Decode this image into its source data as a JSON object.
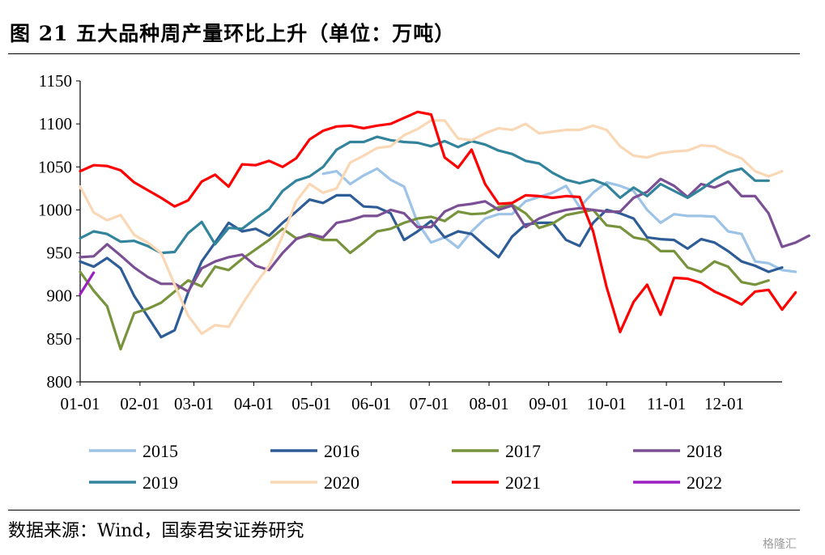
{
  "header": {
    "title": "图 21  五大品种周产量环比上升（单位：万吨）"
  },
  "footer": {
    "source": "数据来源：Wind，国泰君安证券研究",
    "watermark": "格隆汇"
  },
  "chart_data": {
    "type": "line",
    "title": "图 21  五大品种周产量环比上升（单位：万吨）",
    "xlabel": "",
    "ylabel": "",
    "ylim": [
      800,
      1150
    ],
    "yticks": [
      800,
      850,
      900,
      950,
      1000,
      1050,
      1100,
      1150
    ],
    "xlim": [
      1,
      53
    ],
    "xticks": [
      {
        "label": "01-01",
        "week": 1
      },
      {
        "label": "02-01",
        "week": 5.43
      },
      {
        "label": "03-01",
        "week": 9.43
      },
      {
        "label": "04-01",
        "week": 13.86
      },
      {
        "label": "05-01",
        "week": 18.14
      },
      {
        "label": "06-01",
        "week": 22.57
      },
      {
        "label": "07-01",
        "week": 26.86
      },
      {
        "label": "08-01",
        "week": 31.29
      },
      {
        "label": "09-01",
        "week": 35.71
      },
      {
        "label": "10-01",
        "week": 40
      },
      {
        "label": "11-01",
        "week": 44.43
      },
      {
        "label": "12-01",
        "week": 48.71
      }
    ],
    "x_unit": "week of year",
    "legend_position": "bottom",
    "grid": false,
    "series": [
      {
        "name": "2015",
        "color": "#9dc3e6",
        "start": 19,
        "values": [
          1042,
          1045,
          1030,
          1040,
          1048,
          1035,
          1027,
          985,
          962,
          968,
          956,
          975,
          990,
          995,
          995,
          1010,
          1015,
          1020,
          1028,
          1003,
          1020,
          1032,
          1028,
          1022,
          1000,
          985,
          995,
          993,
          993,
          992,
          975,
          972,
          940,
          938,
          930,
          928
        ]
      },
      {
        "name": "2016",
        "color": "#2e5c97",
        "start": 1,
        "values": [
          940,
          934,
          944,
          932,
          900,
          876,
          852,
          860,
          904,
          940,
          962,
          985,
          975,
          978,
          970,
          985,
          998,
          1012,
          1008,
          1017,
          1017,
          1004,
          1003,
          996,
          965,
          975,
          987,
          968,
          975,
          972,
          958,
          945,
          969,
          983,
          985,
          985,
          965,
          958,
          985,
          1000,
          996,
          990,
          968,
          966,
          965,
          955,
          966,
          962,
          952,
          940,
          935,
          928,
          933
        ]
      },
      {
        "name": "2017",
        "color": "#77933c",
        "start": 1,
        "values": [
          928,
          906,
          888,
          838,
          880,
          885,
          892,
          905,
          918,
          911,
          934,
          930,
          943,
          954,
          965,
          978,
          967,
          970,
          965,
          965,
          950,
          962,
          975,
          978,
          985,
          990,
          992,
          987,
          998,
          995,
          996,
          1003,
          1006,
          996,
          979,
          984,
          994,
          997,
          1000,
          982,
          980,
          968,
          965,
          952,
          952,
          933,
          928,
          940,
          934,
          916,
          913,
          918
        ]
      },
      {
        "name": "2018",
        "color": "#7a4f94",
        "start": 1,
        "values": [
          945,
          946,
          960,
          947,
          933,
          922,
          914,
          914,
          905,
          932,
          940,
          945,
          948,
          935,
          930,
          950,
          966,
          972,
          968,
          985,
          988,
          993,
          993,
          1000,
          996,
          980,
          980,
          998,
          1005,
          1007,
          1010,
          1000,
          1005,
          980,
          990,
          996,
          1000,
          1002,
          1000,
          998,
          998,
          1014,
          1021,
          1036,
          1028,
          1015,
          1030,
          1026,
          1033,
          1016,
          1016,
          996,
          957,
          962,
          970
        ]
      },
      {
        "name": "2019",
        "color": "#31849b",
        "start": 1,
        "values": [
          967,
          975,
          972,
          963,
          964,
          958,
          950,
          951,
          973,
          986,
          960,
          979,
          978,
          990,
          1001,
          1022,
          1034,
          1039,
          1050,
          1070,
          1079,
          1079,
          1085,
          1081,
          1079,
          1078,
          1074,
          1080,
          1073,
          1080,
          1076,
          1069,
          1065,
          1057,
          1054,
          1043,
          1035,
          1031,
          1035,
          1029,
          1014,
          1026,
          1016,
          1030,
          1022,
          1014,
          1024,
          1035,
          1044,
          1048,
          1034,
          1034
        ]
      },
      {
        "name": "2020",
        "color": "#fad7b5",
        "start": 1,
        "values": [
          1027,
          997,
          988,
          994,
          971,
          962,
          950,
          913,
          877,
          856,
          866,
          864,
          890,
          914,
          935,
          970,
          1010,
          1030,
          1020,
          1025,
          1055,
          1063,
          1072,
          1074,
          1087,
          1094,
          1104,
          1104,
          1083,
          1081,
          1089,
          1095,
          1093,
          1100,
          1089,
          1091,
          1093,
          1093,
          1098,
          1093,
          1074,
          1063,
          1061,
          1066,
          1068,
          1069,
          1075,
          1074,
          1066,
          1060,
          1045,
          1039,
          1045
        ]
      },
      {
        "name": "2021",
        "color": "#ff0000",
        "start": 1,
        "values": [
          1045,
          1052,
          1051,
          1046,
          1032,
          1023,
          1014,
          1004,
          1011,
          1033,
          1041,
          1027,
          1053,
          1052,
          1057,
          1050,
          1060,
          1082,
          1092,
          1097,
          1098,
          1095,
          1098,
          1100,
          1107,
          1114,
          1111,
          1061,
          1049,
          1070,
          1030,
          1007,
          1008,
          1017,
          1016,
          1014,
          1016,
          1015,
          975,
          910,
          858,
          893,
          913,
          878,
          921,
          920,
          915,
          905,
          898,
          890,
          905,
          907,
          884,
          904
        ]
      },
      {
        "name": "2022",
        "color": "#9b1fc1",
        "start": 1,
        "values": [
          902,
          927
        ]
      }
    ]
  }
}
